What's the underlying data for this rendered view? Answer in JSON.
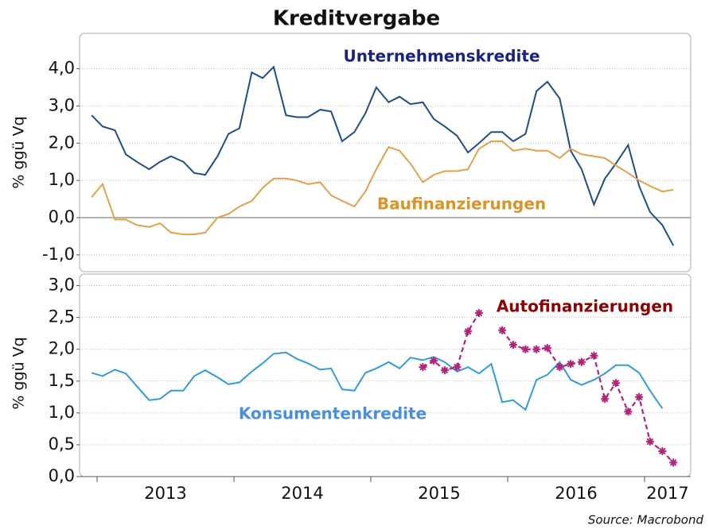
{
  "title": "Kreditvergabe",
  "source": "Source: Macrobond",
  "chart_data": [
    {
      "type": "line",
      "ylabel": "% ggü Vq",
      "x": [
        2012.96,
        2013.04,
        2013.13,
        2013.21,
        2013.29,
        2013.38,
        2013.46,
        2013.54,
        2013.63,
        2013.71,
        2013.79,
        2013.88,
        2013.96,
        2014.04,
        2014.13,
        2014.21,
        2014.29,
        2014.38,
        2014.46,
        2014.54,
        2014.63,
        2014.71,
        2014.79,
        2014.88,
        2014.96,
        2015.04,
        2015.13,
        2015.21,
        2015.29,
        2015.38,
        2015.46,
        2015.54,
        2015.63,
        2015.71,
        2015.79,
        2015.88,
        2015.96,
        2016.04,
        2016.13,
        2016.21,
        2016.29,
        2016.38,
        2016.46,
        2016.54,
        2016.63,
        2016.71,
        2016.79,
        2016.88,
        2016.96,
        2017.04,
        2017.13,
        2017.21
      ],
      "xlim": [
        2012.872,
        2017.337
      ],
      "ylim": [
        -1.45,
        4.95
      ],
      "yticks": [
        {
          "value": -1,
          "label": "-1,0"
        },
        {
          "value": 0,
          "label": "0,0"
        },
        {
          "value": 1,
          "label": "1,0"
        },
        {
          "value": 2,
          "label": "2,0"
        },
        {
          "value": 3,
          "label": "3,0"
        },
        {
          "value": 4,
          "label": "4,0"
        }
      ],
      "grid": true,
      "series": [
        {
          "name": "Unternehmenskredite",
          "color": "#1f4e85",
          "label_color": "#1a237e",
          "style": "solid",
          "values": [
            2.75,
            2.45,
            2.35,
            1.7,
            1.5,
            1.3,
            1.5,
            1.65,
            1.5,
            1.2,
            1.15,
            1.65,
            2.25,
            2.4,
            3.9,
            3.75,
            4.05,
            2.75,
            2.7,
            2.7,
            2.9,
            2.85,
            2.05,
            2.3,
            2.8,
            3.5,
            3.1,
            3.25,
            3.05,
            3.1,
            2.65,
            2.45,
            2.2,
            1.75,
            2.0,
            2.3,
            2.3,
            2.05,
            2.25,
            3.4,
            3.65,
            3.2,
            1.8,
            1.3,
            0.35,
            1.05,
            1.45,
            1.95,
            0.85,
            0.15,
            -0.2,
            -0.75
          ]
        },
        {
          "name": "Baufinanzierungen",
          "color": "#e3a04a",
          "label_color": "#d99425",
          "style": "solid",
          "values": [
            0.55,
            0.9,
            -0.05,
            -0.05,
            -0.2,
            -0.25,
            -0.15,
            -0.4,
            -0.45,
            -0.45,
            -0.4,
            0.0,
            0.1,
            0.3,
            0.45,
            0.8,
            1.05,
            1.05,
            1.0,
            0.9,
            0.95,
            0.6,
            0.45,
            0.3,
            0.7,
            1.3,
            1.9,
            1.8,
            1.45,
            0.95,
            1.15,
            1.25,
            1.25,
            1.3,
            1.85,
            2.05,
            2.05,
            1.8,
            1.85,
            1.8,
            1.8,
            1.6,
            1.85,
            1.7,
            1.65,
            1.6,
            1.4,
            1.2,
            1.0,
            0.85,
            0.7,
            0.75
          ]
        }
      ]
    },
    {
      "type": "line",
      "ylabel": "% ggü Vq",
      "x": [
        2012.96,
        2013.04,
        2013.13,
        2013.21,
        2013.29,
        2013.38,
        2013.46,
        2013.54,
        2013.63,
        2013.71,
        2013.79,
        2013.88,
        2013.96,
        2014.04,
        2014.13,
        2014.21,
        2014.29,
        2014.38,
        2014.46,
        2014.54,
        2014.63,
        2014.71,
        2014.79,
        2014.88,
        2014.96,
        2015.04,
        2015.13,
        2015.21,
        2015.29,
        2015.38,
        2015.46,
        2015.54,
        2015.63,
        2015.71,
        2015.79,
        2015.88,
        2015.96,
        2016.04,
        2016.13,
        2016.21,
        2016.29,
        2016.38,
        2016.46,
        2016.54,
        2016.63,
        2016.71,
        2016.79,
        2016.88,
        2016.96,
        2017.04,
        2017.13,
        2017.21
      ],
      "xlim": [
        2012.872,
        2017.337
      ],
      "xticks": [
        {
          "value": 2013,
          "label": "2013"
        },
        {
          "value": 2014,
          "label": "2014"
        },
        {
          "value": 2015,
          "label": "2015"
        },
        {
          "value": 2016,
          "label": "2016"
        },
        {
          "value": 2017,
          "label": "2017"
        }
      ],
      "ylim": [
        0,
        3.12
      ],
      "yticks": [
        {
          "value": 0,
          "label": "0,0"
        },
        {
          "value": 0.5,
          "label": "0,5"
        },
        {
          "value": 1,
          "label": "1,0"
        },
        {
          "value": 1.5,
          "label": "1,5"
        },
        {
          "value": 2,
          "label": "2,0"
        },
        {
          "value": 2.5,
          "label": "2,5"
        },
        {
          "value": 3,
          "label": "3,0"
        }
      ],
      "grid": true,
      "series": [
        {
          "name": "Konsumentenkredite",
          "color": "#2f9be0",
          "label_color": "#4a90d9",
          "style": "solid",
          "values": [
            1.63,
            1.58,
            1.68,
            1.62,
            1.42,
            1.2,
            1.22,
            1.35,
            1.35,
            1.58,
            1.67,
            1.56,
            1.45,
            1.48,
            1.65,
            1.78,
            1.93,
            1.95,
            1.85,
            1.78,
            1.68,
            1.7,
            1.37,
            1.35,
            1.63,
            1.7,
            1.8,
            1.7,
            1.87,
            1.83,
            1.88,
            1.8,
            1.65,
            1.72,
            1.62,
            1.77,
            1.17,
            1.2,
            1.05,
            1.52,
            1.6,
            1.8,
            1.52,
            1.44,
            1.52,
            1.62,
            1.75,
            1.75,
            1.63,
            1.35,
            1.07,
            null
          ]
        },
        {
          "name": "Autofinanzierungen",
          "color": "#b0237a",
          "label_color": "#8b0000",
          "style": "dashed-star",
          "values": [
            null,
            null,
            null,
            null,
            null,
            null,
            null,
            null,
            null,
            null,
            null,
            null,
            null,
            null,
            null,
            null,
            null,
            null,
            null,
            null,
            null,
            null,
            null,
            null,
            null,
            null,
            null,
            null,
            null,
            1.72,
            1.82,
            1.67,
            1.72,
            2.28,
            2.57,
            null,
            2.3,
            2.07,
            2.0,
            2.0,
            2.02,
            1.72,
            1.77,
            1.8,
            1.9,
            1.22,
            1.47,
            1.02,
            1.25,
            0.55,
            0.4,
            0.22
          ]
        }
      ]
    }
  ]
}
